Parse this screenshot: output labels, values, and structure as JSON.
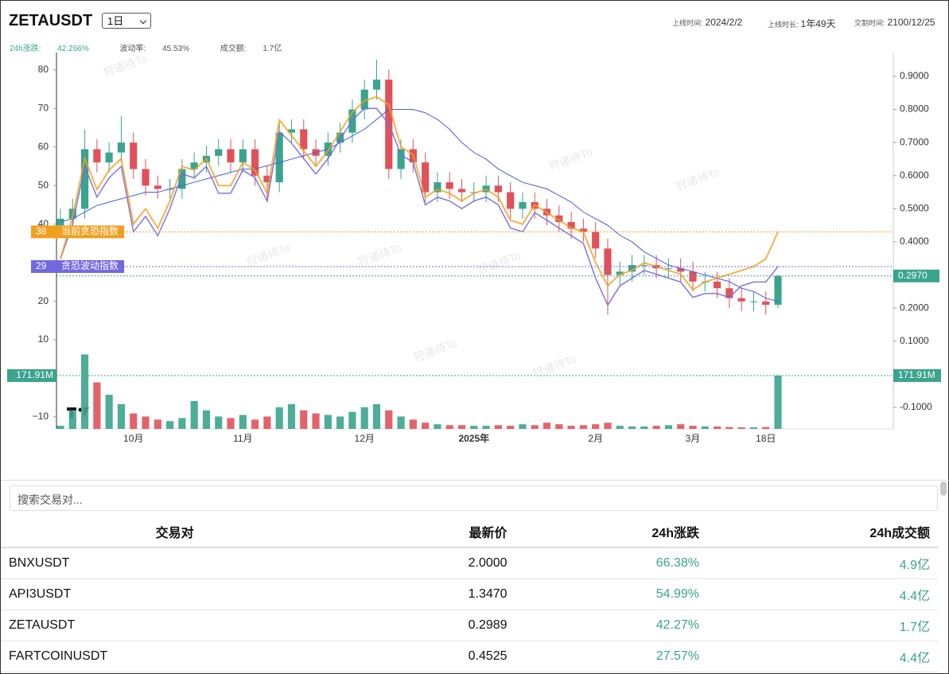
{
  "header": {
    "symbol": "ZETAUSDT",
    "interval": "1日",
    "listing_label": "上线时间:",
    "listing_value": "2024/2/2",
    "duration_label": "上线时长:",
    "duration_value": "1年49天",
    "delivery_label": "交割时间:",
    "delivery_value": "2100/12/25"
  },
  "stats": [
    {
      "label": "24h涨跌:",
      "value": "42.266%"
    },
    {
      "label": "波动率:",
      "value": "45.53%"
    },
    {
      "label": "成交额:",
      "value": "1.7亿"
    }
  ],
  "chart_data": {
    "type": "candlestick",
    "watermark": "狩诸待To",
    "categories": [
      null,
      null,
      null,
      null,
      null,
      null,
      "10月",
      null,
      null,
      null,
      null,
      null,
      null,
      null,
      null,
      "11月",
      null,
      null,
      null,
      null,
      null,
      null,
      null,
      null,
      null,
      "12月",
      null,
      null,
      null,
      null,
      null,
      null,
      null,
      null,
      "2025年",
      null,
      null,
      null,
      null,
      null,
      null,
      null,
      null,
      null,
      "2月",
      null,
      null,
      null,
      null,
      null,
      null,
      null,
      "3月",
      null,
      null,
      null,
      null,
      null,
      "18日",
      null
    ],
    "candles": {
      "up_color": "#3aa48d",
      "down_color": "#e0525b",
      "open": [
        0.45,
        0.47,
        0.5,
        0.68,
        0.64,
        0.67,
        0.7,
        0.62,
        0.57,
        0.56,
        0.56,
        0.62,
        0.64,
        0.66,
        0.68,
        0.64,
        0.68,
        0.6,
        0.58,
        0.73,
        0.74,
        0.68,
        0.66,
        0.7,
        0.73,
        0.8,
        0.86,
        0.89,
        0.62,
        0.68,
        0.64,
        0.55,
        0.58,
        0.56,
        0.55,
        0.55,
        0.57,
        0.55,
        0.5,
        0.52,
        0.5,
        0.48,
        0.46,
        0.44,
        0.43,
        0.38,
        0.3,
        0.31,
        0.33,
        0.33,
        0.32,
        0.32,
        0.31,
        0.28,
        0.28,
        0.26,
        0.23,
        0.22,
        0.22,
        0.21
      ],
      "high": [
        0.5,
        0.53,
        0.74,
        0.71,
        0.7,
        0.78,
        0.73,
        0.65,
        0.6,
        0.59,
        0.65,
        0.67,
        0.69,
        0.71,
        0.71,
        0.71,
        0.71,
        0.63,
        0.76,
        0.77,
        0.77,
        0.71,
        0.73,
        0.76,
        0.83,
        0.89,
        0.95,
        0.92,
        0.71,
        0.71,
        0.67,
        0.61,
        0.61,
        0.59,
        0.58,
        0.6,
        0.6,
        0.58,
        0.55,
        0.55,
        0.53,
        0.51,
        0.49,
        0.47,
        0.46,
        0.41,
        0.34,
        0.36,
        0.36,
        0.36,
        0.35,
        0.35,
        0.34,
        0.31,
        0.31,
        0.29,
        0.26,
        0.25,
        0.25,
        0.3
      ],
      "low": [
        0.42,
        0.44,
        0.47,
        0.61,
        0.61,
        0.64,
        0.59,
        0.54,
        0.53,
        0.53,
        0.53,
        0.59,
        0.61,
        0.63,
        0.61,
        0.61,
        0.57,
        0.52,
        0.55,
        0.7,
        0.65,
        0.63,
        0.63,
        0.67,
        0.7,
        0.77,
        0.83,
        0.59,
        0.59,
        0.61,
        0.52,
        0.52,
        0.53,
        0.52,
        0.52,
        0.52,
        0.52,
        0.47,
        0.47,
        0.47,
        0.45,
        0.43,
        0.41,
        0.4,
        0.35,
        0.18,
        0.27,
        0.28,
        0.3,
        0.29,
        0.29,
        0.28,
        0.25,
        0.25,
        0.23,
        0.2,
        0.19,
        0.19,
        0.18,
        0.2
      ],
      "close": [
        0.47,
        0.5,
        0.68,
        0.64,
        0.67,
        0.7,
        0.62,
        0.57,
        0.56,
        0.56,
        0.62,
        0.64,
        0.66,
        0.68,
        0.64,
        0.68,
        0.6,
        0.58,
        0.73,
        0.74,
        0.68,
        0.66,
        0.7,
        0.73,
        0.8,
        0.86,
        0.89,
        0.62,
        0.68,
        0.64,
        0.55,
        0.58,
        0.56,
        0.55,
        0.55,
        0.57,
        0.55,
        0.5,
        0.52,
        0.5,
        0.48,
        0.46,
        0.44,
        0.43,
        0.38,
        0.3,
        0.31,
        0.33,
        0.33,
        0.32,
        0.32,
        0.31,
        0.28,
        0.28,
        0.26,
        0.23,
        0.22,
        0.22,
        0.21,
        0.297
      ]
    },
    "volume": [
      10,
      60,
      240,
      150,
      110,
      80,
      50,
      40,
      30,
      25,
      35,
      90,
      60,
      40,
      35,
      45,
      30,
      40,
      70,
      80,
      60,
      50,
      45,
      40,
      55,
      70,
      80,
      60,
      40,
      30,
      20,
      15,
      12,
      12,
      10,
      10,
      12,
      10,
      15,
      12,
      20,
      15,
      10,
      12,
      15,
      20,
      10,
      8,
      8,
      10,
      12,
      15,
      10,
      8,
      8,
      6,
      5,
      5,
      6,
      171.91
    ],
    "volume_marker": {
      "value": 171.91,
      "label": "171.91M",
      "color": "#3aa48d"
    },
    "ma": {
      "color": "#4a5be0",
      "axis": "y2",
      "values": [
        0.46,
        0.47,
        0.49,
        0.51,
        0.52,
        0.53,
        0.54,
        0.55,
        0.55,
        0.56,
        0.57,
        0.58,
        0.59,
        0.6,
        0.61,
        0.62,
        0.62,
        0.63,
        0.64,
        0.65,
        0.66,
        0.67,
        0.68,
        0.7,
        0.72,
        0.74,
        0.77,
        0.8,
        0.8,
        0.8,
        0.79,
        0.77,
        0.74,
        0.7,
        0.67,
        0.65,
        0.62,
        0.6,
        0.58,
        0.57,
        0.56,
        0.54,
        0.52,
        0.49,
        0.47,
        0.45,
        0.42,
        0.4,
        0.37,
        0.35,
        0.33,
        0.32,
        0.31,
        0.3,
        0.29,
        0.28,
        0.26,
        0.25,
        0.23,
        0.22
      ]
    },
    "fear": {
      "name": "当前贪恐指数",
      "color": "#f0a020",
      "value": 38,
      "values": [
        31,
        42,
        57,
        49,
        54,
        57,
        40,
        44,
        39,
        46,
        55,
        54,
        57,
        50,
        50,
        56,
        54,
        48,
        67,
        63,
        59,
        55,
        59,
        64,
        69,
        72,
        73,
        71,
        60,
        58,
        47,
        49,
        48,
        46,
        48,
        49,
        47,
        41,
        40,
        45,
        43,
        41,
        39,
        38,
        30,
        24,
        27,
        28,
        30,
        29,
        28,
        27,
        23,
        25,
        26,
        27,
        28,
        29,
        31,
        38
      ]
    },
    "fear_volatility": {
      "name": "贪恐波动指数",
      "color": "#7468e0",
      "value": 29,
      "values": [
        31,
        40,
        55,
        47,
        52,
        55,
        38,
        42,
        37,
        44,
        53,
        52,
        55,
        48,
        48,
        54,
        52,
        46,
        64,
        61,
        57,
        53,
        57,
        62,
        67,
        70,
        70,
        66,
        58,
        56,
        45,
        47,
        46,
        44,
        46,
        47,
        45,
        39,
        38,
        43,
        41,
        39,
        37,
        35,
        26,
        19,
        24,
        26,
        28,
        27,
        26,
        25,
        21,
        22,
        22,
        21,
        24,
        25,
        25,
        29
      ]
    },
    "price_marker": {
      "value": 0.297,
      "label": "0.2970",
      "color": "#3aa48d"
    },
    "ylim": [
      -13.1,
      84.5
    ],
    "yticks": [
      {
        "value": -10,
        "label": "−10"
      },
      10,
      20,
      40,
      50,
      60,
      70,
      80
    ],
    "y2lim": [
      -0.165,
      0.972
    ],
    "y2ticks": [
      {
        "value": -0.1,
        "label": "-0.1000"
      },
      {
        "value": 0.1,
        "label": "0.1000"
      },
      {
        "value": 0.2,
        "label": "0.2000"
      },
      {
        "value": 0.4,
        "label": "0.4000"
      },
      {
        "value": 0.5,
        "label": "0.5000"
      },
      {
        "value": 0.6,
        "label": "0.6000"
      },
      {
        "value": 0.7,
        "label": "0.7000"
      },
      {
        "value": 0.8,
        "label": "0.8000"
      },
      {
        "value": 0.9,
        "label": "0.9000"
      }
    ]
  },
  "search_placeholder": "搜索交易对...",
  "table": {
    "columns": [
      "交易对",
      "最新价",
      "24h涨跌",
      "24h成交额"
    ],
    "rows": [
      [
        "BNXUSDT",
        "2.0000",
        "66.38%",
        "4.9亿"
      ],
      [
        "API3USDT",
        "1.3470",
        "54.99%",
        "4.4亿"
      ],
      [
        "ZETAUSDT",
        "0.2989",
        "42.27%",
        "1.7亿"
      ],
      [
        "FARTCOINUSDT",
        "0.4525",
        "27.57%",
        "4.4亿"
      ]
    ]
  }
}
